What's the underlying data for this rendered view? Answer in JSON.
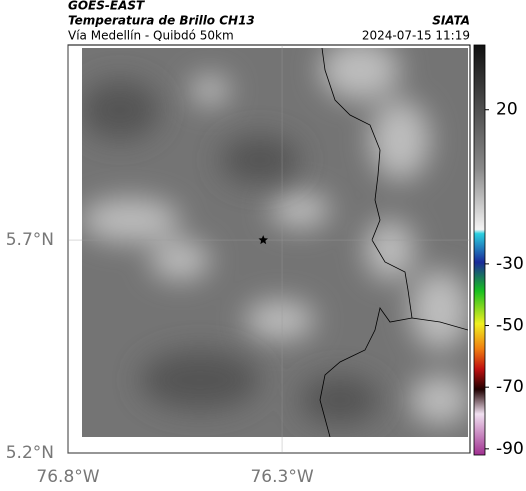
{
  "header": {
    "source": "GOES-EAST",
    "product": "Temperatura de Brillo CH13",
    "region": "Vía Medellín - Quibdó 50km",
    "org": "SIATA",
    "datetime": "2024-07-15 11:19"
  },
  "map": {
    "xlim": [
      -76.8,
      -75.861
    ],
    "ylim": [
      5.2,
      6.158
    ],
    "xticks": [
      {
        "value": -76.8,
        "label": "76.8°W"
      },
      {
        "value": -76.3,
        "label": "76.3°W"
      }
    ],
    "yticks": [
      {
        "value": 5.2,
        "label": "5.2°N"
      },
      {
        "value": 5.7,
        "label": "5.7°N"
      }
    ],
    "grid": true,
    "marker": {
      "x": -76.344,
      "y": 5.7
    }
  },
  "colorbar": {
    "lim": [
      -92,
      41
    ],
    "ticks": [
      20,
      -30,
      -50,
      -70,
      -90
    ]
  }
}
